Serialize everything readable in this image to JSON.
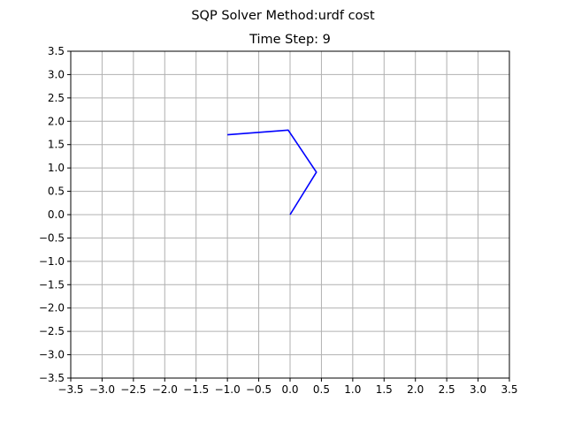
{
  "figure": {
    "suptitle": "SQP Solver Method:urdf cost"
  },
  "chart_data": {
    "type": "line",
    "title": "Time Step: 9",
    "xlabel": "",
    "ylabel": "",
    "xlim": [
      -3.5,
      3.5
    ],
    "ylim": [
      -3.5,
      3.5
    ],
    "grid": true,
    "xticks": [
      -3.5,
      -3.0,
      -2.5,
      -2.0,
      -1.5,
      -1.0,
      -0.5,
      0.0,
      0.5,
      1.0,
      1.5,
      2.0,
      2.5,
      3.0,
      3.5
    ],
    "xtick_labels": [
      "−3.5",
      "−3.0",
      "−2.5",
      "−2.0",
      "−1.5",
      "−1.0",
      "−0.5",
      "0.0",
      "0.5",
      "1.0",
      "1.5",
      "2.0",
      "2.5",
      "3.0",
      "3.5"
    ],
    "yticks": [
      -3.5,
      -3.0,
      -2.5,
      -2.0,
      -1.5,
      -1.0,
      -0.5,
      0.0,
      0.5,
      1.0,
      1.5,
      2.0,
      2.5,
      3.0,
      3.5
    ],
    "ytick_labels": [
      "−3.5",
      "−3.0",
      "−2.5",
      "−2.0",
      "−1.5",
      "−1.0",
      "−0.5",
      "0.0",
      "0.5",
      "1.0",
      "1.5",
      "2.0",
      "2.5",
      "3.0",
      "3.5"
    ],
    "series": [
      {
        "color": "#0000ff",
        "x": [
          0.0,
          0.42,
          -0.03,
          -1.0
        ],
        "y": [
          0.0,
          0.91,
          1.81,
          1.71
        ]
      }
    ]
  }
}
